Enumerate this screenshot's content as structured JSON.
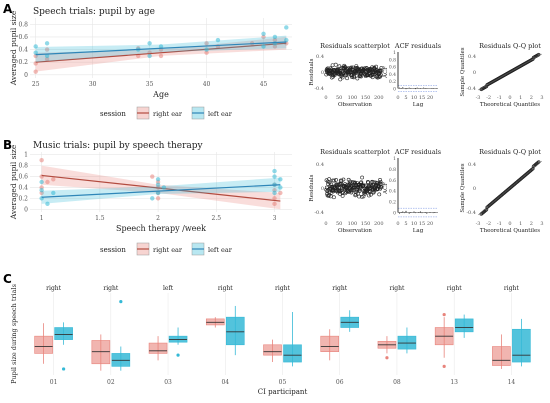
{
  "colors": {
    "red": "#e8847c",
    "blue": "#35b9d6",
    "red_line": "#b24b3f",
    "blue_line": "#2f86b8",
    "grid": "#e6e6e6",
    "axis_text": "#555555"
  },
  "panels": {
    "a": {
      "letter": "A"
    },
    "b": {
      "letter": "B"
    },
    "c": {
      "letter": "C"
    }
  },
  "chart_data": [
    {
      "id": "A_main",
      "type": "scatter",
      "title": "Speech trials: pupil by age",
      "xlabel": "Age",
      "ylabel": "Averaged pupil size",
      "xlim": [
        24.5,
        47.5
      ],
      "ylim": [
        -0.05,
        0.9
      ],
      "xticks": [
        25,
        30,
        35,
        40,
        45
      ],
      "yticks": [
        0.0,
        0.2,
        0.4,
        0.6,
        0.8
      ],
      "grid": true,
      "legend": {
        "title": "session",
        "entries": [
          "right ear",
          "left ear"
        ],
        "placement": "bottom"
      },
      "series": [
        {
          "name": "right ear",
          "points": [
            [
              25,
              0.3
            ],
            [
              25,
              0.18
            ],
            [
              25,
              0.05
            ],
            [
              26,
              0.4
            ],
            [
              26,
              0.25
            ],
            [
              34,
              0.3
            ],
            [
              34,
              0.42
            ],
            [
              35,
              0.35
            ],
            [
              36,
              0.4
            ],
            [
              36,
              0.3
            ],
            [
              40,
              0.5
            ],
            [
              40,
              0.35
            ],
            [
              41,
              0.45
            ],
            [
              44,
              0.5
            ],
            [
              45,
              0.6
            ],
            [
              46,
              0.45
            ],
            [
              46,
              0.55
            ],
            [
              47,
              0.5
            ]
          ],
          "fit": [
            [
              25,
              0.2
            ],
            [
              47,
              0.5
            ]
          ],
          "ci": [
            [
              25,
              0.05,
              0.35
            ],
            [
              36,
              0.3,
              0.4
            ],
            [
              47,
              0.4,
              0.6
            ]
          ]
        },
        {
          "name": "left ear",
          "points": [
            [
              25,
              0.45
            ],
            [
              25,
              0.35
            ],
            [
              26,
              0.3
            ],
            [
              26,
              0.5
            ],
            [
              34,
              0.4
            ],
            [
              35,
              0.3
            ],
            [
              35,
              0.5
            ],
            [
              36,
              0.45
            ],
            [
              40,
              0.4
            ],
            [
              41,
              0.55
            ],
            [
              45,
              0.45
            ],
            [
              45,
              0.65
            ],
            [
              46,
              0.5
            ],
            [
              46,
              0.6
            ],
            [
              47,
              0.75
            ],
            [
              47,
              0.55
            ]
          ],
          "fit": [
            [
              25,
              0.32
            ],
            [
              47,
              0.52
            ]
          ],
          "ci": [
            [
              25,
              0.2,
              0.44
            ],
            [
              36,
              0.36,
              0.48
            ],
            [
              47,
              0.42,
              0.62
            ]
          ]
        }
      ]
    },
    {
      "id": "A_resid_scatter",
      "type": "scatter",
      "title": "Residuals scatterplot",
      "xlabel": "Observation",
      "ylabel": "Residuals",
      "xlim": [
        0,
        220
      ],
      "ylim": [
        -0.5,
        0.5
      ],
      "xticks": [
        0,
        50,
        100,
        150,
        200
      ],
      "yticks": [
        0.4,
        0.0,
        -0.4
      ]
    },
    {
      "id": "A_acf",
      "type": "bar",
      "title": "ACF residuals",
      "xlabel": "Lag",
      "ylabel": "ACF",
      "xlim": [
        0,
        25
      ],
      "ylim": [
        -0.1,
        1.0
      ],
      "xticks": [
        0,
        5,
        10,
        15,
        20
      ],
      "yticks": [
        0.0,
        0.2,
        0.4,
        0.6,
        0.8,
        1.0
      ],
      "values": [
        1.0,
        0.02,
        -0.01,
        0.03,
        0.0,
        -0.02,
        0.01,
        0.02,
        -0.01,
        0.0,
        0.01,
        -0.02,
        0.02,
        0.01,
        -0.01,
        0.0,
        0.02,
        -0.01,
        0.01,
        0.0,
        0.0,
        0.01,
        -0.01,
        0.0,
        0.01
      ]
    },
    {
      "id": "A_qq",
      "type": "scatter",
      "title": "Residuals Q-Q plot",
      "xlabel": "Theoretical Quantiles",
      "ylabel": "Sample Quantiles",
      "xlim": [
        -3,
        3
      ],
      "ylim": [
        -0.5,
        0.5
      ],
      "xticks": [
        -3,
        -2,
        -1,
        0,
        1,
        2,
        3
      ],
      "yticks": [
        -0.4,
        0.0,
        0.4
      ]
    },
    {
      "id": "B_main",
      "type": "scatter",
      "title": "Music trials: pupil by speech therapy",
      "xlabel": "Speech therapy /week",
      "ylabel": "Averaged pupil size",
      "xlim": [
        0.9,
        3.15
      ],
      "ylim": [
        -0.05,
        1.05
      ],
      "xticks": [
        1.0,
        1.5,
        2.0,
        2.5,
        3.0
      ],
      "yticks": [
        0.0,
        0.2,
        0.4,
        0.6,
        0.8,
        1.0
      ],
      "grid": true,
      "legend": {
        "title": "session",
        "entries": [
          "right ear",
          "left ear"
        ],
        "placement": "bottom"
      },
      "series": [
        {
          "name": "right ear",
          "points": [
            [
              1,
              0.6
            ],
            [
              1,
              0.4
            ],
            [
              1,
              0.3
            ],
            [
              1.05,
              0.5
            ],
            [
              1,
              0.9
            ],
            [
              1.1,
              0.55
            ],
            [
              2,
              0.5
            ],
            [
              2,
              0.4
            ],
            [
              2,
              0.3
            ],
            [
              2,
              0.2
            ],
            [
              1.95,
              0.6
            ],
            [
              3,
              0.35
            ],
            [
              3,
              0.2
            ],
            [
              3,
              0.1
            ],
            [
              3.05,
              0.3
            ],
            [
              3,
              0.45
            ]
          ],
          "fit": [
            [
              1,
              0.62
            ],
            [
              3.05,
              0.15
            ]
          ],
          "ci": [
            [
              1,
              0.45,
              0.8
            ],
            [
              2,
              0.3,
              0.45
            ],
            [
              3.05,
              0.0,
              0.3
            ]
          ]
        },
        {
          "name": "left ear",
          "points": [
            [
              1,
              0.2
            ],
            [
              1,
              0.35
            ],
            [
              1,
              0.5
            ],
            [
              1.05,
              0.1
            ],
            [
              1.1,
              0.3
            ],
            [
              2,
              0.45
            ],
            [
              2,
              0.55
            ],
            [
              2,
              0.3
            ],
            [
              1.95,
              0.2
            ],
            [
              2.05,
              0.4
            ],
            [
              3,
              0.45
            ],
            [
              3,
              0.6
            ],
            [
              3,
              0.3
            ],
            [
              3.05,
              0.55
            ],
            [
              3,
              0.7
            ],
            [
              3.05,
              0.4
            ]
          ],
          "fit": [
            [
              1,
              0.22
            ],
            [
              3.05,
              0.45
            ]
          ],
          "ci": [
            [
              1,
              0.1,
              0.34
            ],
            [
              2,
              0.28,
              0.42
            ],
            [
              3.05,
              0.32,
              0.58
            ]
          ]
        }
      ]
    },
    {
      "id": "B_resid_scatter",
      "type": "scatter",
      "title": "Residuals scatterplot",
      "xlabel": "Observation",
      "ylabel": "Residuals",
      "xlim": [
        0,
        220
      ],
      "ylim": [
        -0.5,
        0.5
      ],
      "xticks": [
        0,
        50,
        100,
        150,
        200
      ],
      "yticks": [
        0.4,
        0.0,
        -0.4
      ]
    },
    {
      "id": "B_acf",
      "type": "bar",
      "title": "ACF residuals",
      "xlabel": "Lag",
      "ylabel": "ACF",
      "xlim": [
        0,
        25
      ],
      "ylim": [
        -0.1,
        1.0
      ],
      "xticks": [
        0,
        5,
        10,
        15,
        20
      ],
      "yticks": [
        0.0,
        0.2,
        0.4,
        0.6,
        0.8,
        1.0
      ],
      "values": [
        1.0,
        -0.02,
        0.01,
        0.02,
        -0.01,
        0.03,
        0.0,
        -0.02,
        0.01,
        0.0,
        0.02,
        -0.01,
        0.0,
        0.01,
        0.02,
        -0.01,
        0.0,
        0.01,
        -0.02,
        0.0,
        0.01,
        0.0,
        -0.01,
        0.01,
        0.0
      ]
    },
    {
      "id": "B_qq",
      "type": "scatter",
      "title": "Residuals Q-Q plot",
      "xlabel": "Theoretical Quantiles",
      "ylabel": "Sample Quantiles",
      "xlim": [
        -3,
        3
      ],
      "ylim": [
        -0.5,
        0.5
      ],
      "xticks": [
        -3,
        -2,
        -1,
        0,
        1,
        2,
        3
      ],
      "yticks": [
        -0.4,
        0.0,
        0.4
      ]
    },
    {
      "id": "C_box",
      "type": "box",
      "xlabel": "CI participant",
      "ylabel": "Pupil size during speech trials",
      "ylim": [
        -0.05,
        0.9
      ],
      "grid": true,
      "series_names": [
        "right ear",
        "left ear"
      ],
      "categories": [
        "01",
        "02",
        "03",
        "04",
        "05",
        "06",
        "08",
        "13",
        "14"
      ],
      "labels": [
        "right",
        "right",
        "left",
        "right",
        "right",
        "right",
        "right",
        "right",
        "right"
      ],
      "boxes": {
        "right ear": [
          {
            "min": 0.08,
            "q1": 0.2,
            "med": 0.28,
            "q3": 0.4,
            "max": 0.55,
            "out": []
          },
          {
            "min": 0.0,
            "q1": 0.08,
            "med": 0.22,
            "q3": 0.35,
            "max": 0.42,
            "out": []
          },
          {
            "min": 0.12,
            "q1": 0.2,
            "med": 0.23,
            "q3": 0.32,
            "max": 0.4,
            "out": []
          },
          {
            "min": 0.5,
            "q1": 0.53,
            "med": 0.56,
            "q3": 0.6,
            "max": 0.62,
            "out": []
          },
          {
            "min": 0.1,
            "q1": 0.18,
            "med": 0.22,
            "q3": 0.3,
            "max": 0.36,
            "out": []
          },
          {
            "min": 0.12,
            "q1": 0.22,
            "med": 0.28,
            "q3": 0.4,
            "max": 0.48,
            "out": []
          },
          {
            "min": 0.2,
            "q1": 0.26,
            "med": 0.3,
            "q3": 0.34,
            "max": 0.4,
            "out": [
              0.15
            ]
          },
          {
            "min": 0.15,
            "q1": 0.3,
            "med": 0.4,
            "q3": 0.5,
            "max": 0.62,
            "out": [
              0.05,
              0.65
            ]
          },
          {
            "min": 0.02,
            "q1": 0.06,
            "med": 0.12,
            "q3": 0.28,
            "max": 0.42,
            "out": []
          }
        ],
        "left ear": [
          {
            "min": 0.3,
            "q1": 0.36,
            "med": 0.42,
            "q3": 0.5,
            "max": 0.56,
            "out": [
              0.02
            ]
          },
          {
            "min": 0.0,
            "q1": 0.05,
            "med": 0.12,
            "q3": 0.2,
            "max": 0.28,
            "out": [
              0.8
            ]
          },
          {
            "min": 0.3,
            "q1": 0.33,
            "med": 0.36,
            "q3": 0.4,
            "max": 0.5,
            "out": [
              0.18
            ]
          },
          {
            "min": 0.18,
            "q1": 0.3,
            "med": 0.45,
            "q3": 0.62,
            "max": 0.75,
            "out": []
          },
          {
            "min": 0.05,
            "q1": 0.1,
            "med": 0.18,
            "q3": 0.3,
            "max": 0.68,
            "out": []
          },
          {
            "min": 0.45,
            "q1": 0.5,
            "med": 0.56,
            "q3": 0.62,
            "max": 0.7,
            "out": []
          },
          {
            "min": 0.2,
            "q1": 0.25,
            "med": 0.32,
            "q3": 0.4,
            "max": 0.5,
            "out": []
          },
          {
            "min": 0.38,
            "q1": 0.45,
            "med": 0.5,
            "q3": 0.6,
            "max": 0.65,
            "out": []
          },
          {
            "min": 0.05,
            "q1": 0.1,
            "med": 0.18,
            "q3": 0.48,
            "max": 0.6,
            "out": []
          }
        ]
      }
    }
  ]
}
